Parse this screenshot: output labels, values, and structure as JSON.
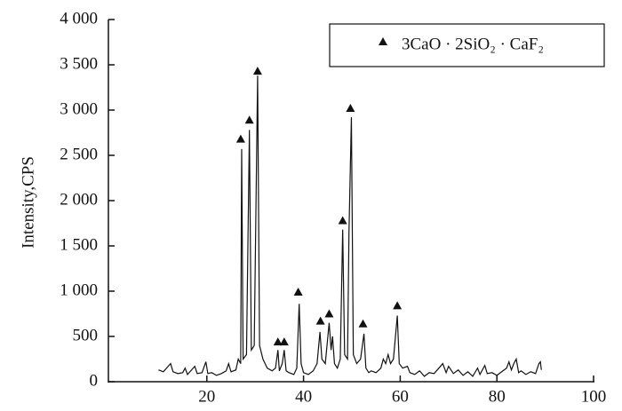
{
  "chart_data": {
    "type": "line",
    "ylabel": "Intensity,CPS",
    "xlim": [
      0,
      100
    ],
    "xticks": [
      20,
      40,
      60,
      80,
      100
    ],
    "ylim": [
      0,
      4000
    ],
    "yticks": [
      0,
      500,
      {
        "value": 1000,
        "label": "1 000"
      },
      {
        "value": 1500,
        "label": "1 500"
      },
      {
        "value": 2000,
        "label": "2 000"
      },
      {
        "value": 2500,
        "label": "2 500"
      },
      {
        "value": 3000,
        "label": "3 000"
      },
      {
        "value": 3500,
        "label": "3 500"
      },
      {
        "value": 4000,
        "label": "4 000"
      }
    ],
    "grid": false,
    "legend": "upper right",
    "series": [
      {
        "color": "#111111",
        "x": [
          10,
          11,
          12,
          12.5,
          13,
          14,
          15,
          15.5,
          16,
          17,
          17.5,
          18,
          19,
          19.8,
          20.2,
          21,
          22,
          23,
          24,
          24.5,
          25,
          26,
          26.5,
          27,
          27.2,
          27.5,
          28.2,
          28.8,
          29.2,
          29.8,
          30.5,
          30.9,
          31.6,
          32.5,
          33.5,
          34.2,
          34.7,
          35,
          35.6,
          36,
          36.4,
          37,
          38,
          38.6,
          39.1,
          39.5,
          40,
          41,
          42,
          42.8,
          43.4,
          43.8,
          44.5,
          45.3,
          45.7,
          46,
          46.4,
          47,
          47.6,
          48.1,
          48.5,
          49.1,
          49.4,
          49.9,
          50.3,
          51,
          51.8,
          52.5,
          52.9,
          53.5,
          54,
          55,
          56,
          56.5,
          57,
          57.5,
          58,
          58.6,
          59.4,
          59.8,
          60.5,
          61.5,
          62,
          63,
          64,
          65,
          66,
          67,
          68,
          68.8,
          69.5,
          70,
          71,
          72,
          73,
          74,
          75,
          76,
          76.5,
          77.5,
          78,
          79,
          80,
          81,
          82,
          82.5,
          83,
          83.5,
          84,
          84.5,
          85,
          86,
          87,
          88,
          88.7,
          89,
          89.2
        ],
        "values": [
          130,
          110,
          170,
          200,
          110,
          90,
          100,
          150,
          80,
          140,
          170,
          90,
          100,
          220,
          90,
          100,
          70,
          90,
          120,
          200,
          110,
          130,
          250,
          200,
          2570,
          250,
          300,
          2780,
          350,
          400,
          3380,
          400,
          250,
          150,
          120,
          150,
          350,
          120,
          200,
          350,
          120,
          100,
          80,
          150,
          860,
          200,
          100,
          80,
          120,
          200,
          550,
          250,
          200,
          650,
          350,
          500,
          200,
          150,
          250,
          1680,
          300,
          250,
          1650,
          2920,
          300,
          200,
          250,
          530,
          150,
          100,
          120,
          100,
          150,
          250,
          200,
          300,
          200,
          250,
          730,
          200,
          150,
          170,
          100,
          80,
          120,
          60,
          100,
          90,
          150,
          200,
          100,
          170,
          90,
          130,
          70,
          110,
          60,
          150,
          80,
          180,
          90,
          100,
          70,
          110,
          150,
          220,
          130,
          200,
          250,
          100,
          120,
          80,
          110,
          90,
          200,
          220,
          130
        ]
      },
      {
        "type": "scatter",
        "marker": "triangle",
        "color": "#111111",
        "name": "3CaO · 2SiO₂ · CaF₂",
        "x": [
          27.0,
          28.8,
          30.5,
          34.7,
          36.0,
          38.9,
          43.5,
          45.3,
          48.1,
          49.7,
          52.3,
          59.4
        ],
        "values": [
          2680,
          2890,
          3430,
          440,
          440,
          990,
          670,
          750,
          1780,
          3020,
          640,
          840
        ]
      }
    ]
  }
}
